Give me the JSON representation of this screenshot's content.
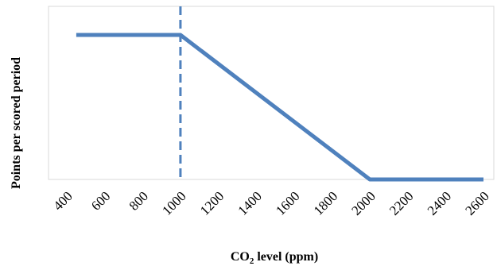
{
  "chart_data": {
    "type": "line",
    "title": "",
    "xlabel": {
      "main": "CO",
      "subscript": "2",
      "rest": " level (ppm)"
    },
    "ylabel": "Points per scored period",
    "xlim": [
      400,
      2600
    ],
    "x_ticks": [
      400,
      600,
      800,
      1000,
      1200,
      1400,
      1600,
      1800,
      2000,
      2200,
      2400,
      2600
    ],
    "x_tick_labels": [
      "400",
      "600",
      "800",
      "1000",
      "1200",
      "1400",
      "1600",
      "1800",
      "2000",
      "2200",
      "2400",
      "2600"
    ],
    "y_tick_labels_shown": false,
    "series": [
      {
        "color": "#4F81BD",
        "x": [
          450,
          1000,
          2000,
          2600
        ],
        "y": [
          1,
          1,
          0,
          0
        ]
      }
    ],
    "reference_lines": [
      {
        "axis": "x",
        "value": 1000,
        "style": "dashed",
        "color": "#4F81BD"
      }
    ],
    "grid": false,
    "legend": "none"
  }
}
